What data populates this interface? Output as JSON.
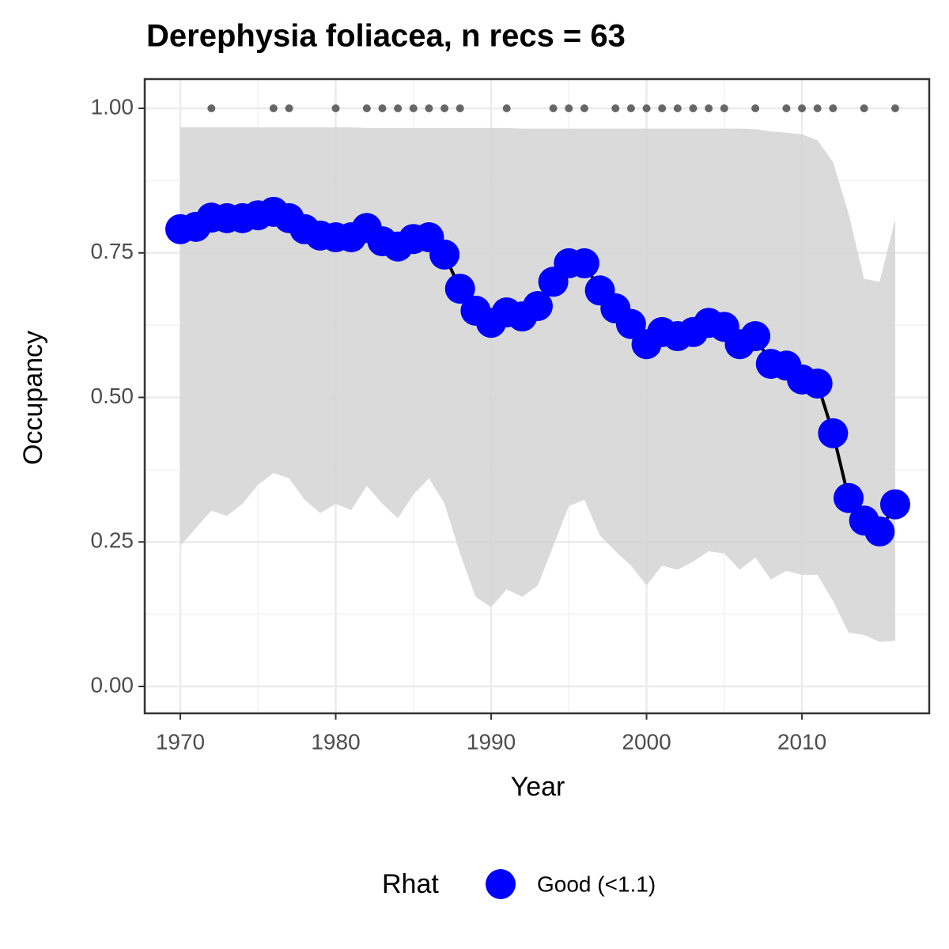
{
  "chart_data": {
    "type": "line",
    "title": "Derephysia foliacea, n recs = 63",
    "x_label": "Year",
    "y_label": "Occupancy",
    "xlim": [
      1967.71,
      2018.19
    ],
    "ylim": [
      -0.0465,
      1.0506
    ],
    "xticks": [
      1970,
      1980,
      1990,
      2000,
      2010
    ],
    "yticks": [
      {
        "value": 0,
        "label": "0.00"
      },
      {
        "value": 0.25,
        "label": "0.25"
      },
      {
        "value": 0.5,
        "label": "0.50"
      },
      {
        "value": 0.75,
        "label": "0.75"
      },
      {
        "value": 1,
        "label": "1.00"
      }
    ],
    "grid": true,
    "legend_title": "Rhat",
    "legend_position": "bottom",
    "x": [
      1970,
      1971,
      1972,
      1973,
      1974,
      1975,
      1976,
      1977,
      1978,
      1979,
      1980,
      1981,
      1982,
      1983,
      1984,
      1985,
      1986,
      1987,
      1988,
      1989,
      1990,
      1991,
      1992,
      1993,
      1994,
      1995,
      1996,
      1997,
      1998,
      1999,
      2000,
      2001,
      2002,
      2003,
      2004,
      2005,
      2006,
      2007,
      2008,
      2009,
      2010,
      2011,
      2012,
      2013,
      2014,
      2015,
      2016
    ],
    "series": [
      {
        "name": "Good (<1.1)",
        "color": "#0000ff",
        "line_color": "#000000",
        "values": [
          0.791,
          0.795,
          0.811,
          0.81,
          0.81,
          0.815,
          0.821,
          0.81,
          0.791,
          0.78,
          0.777,
          0.777,
          0.793,
          0.77,
          0.761,
          0.774,
          0.777,
          0.747,
          0.688,
          0.65,
          0.629,
          0.647,
          0.64,
          0.658,
          0.7,
          0.732,
          0.732,
          0.685,
          0.654,
          0.627,
          0.592,
          0.613,
          0.606,
          0.613,
          0.629,
          0.622,
          0.592,
          0.606,
          0.558,
          0.555,
          0.531,
          0.524,
          0.438,
          0.326,
          0.287,
          0.268,
          0.315
        ]
      }
    ],
    "band": {
      "color": "#d6d6d6",
      "upper": [
        0.967,
        0.967,
        0.967,
        0.967,
        0.967,
        0.967,
        0.967,
        0.967,
        0.967,
        0.967,
        0.967,
        0.967,
        0.966,
        0.966,
        0.966,
        0.966,
        0.966,
        0.966,
        0.966,
        0.966,
        0.966,
        0.966,
        0.965,
        0.965,
        0.965,
        0.965,
        0.965,
        0.965,
        0.965,
        0.965,
        0.965,
        0.965,
        0.965,
        0.965,
        0.965,
        0.965,
        0.965,
        0.964,
        0.96,
        0.958,
        0.955,
        0.945,
        0.907,
        0.818,
        0.705,
        0.7,
        0.808
      ],
      "lower": [
        0.243,
        0.274,
        0.304,
        0.295,
        0.316,
        0.349,
        0.369,
        0.36,
        0.323,
        0.3,
        0.316,
        0.305,
        0.347,
        0.316,
        0.291,
        0.332,
        0.36,
        0.316,
        0.23,
        0.155,
        0.137,
        0.168,
        0.155,
        0.175,
        0.243,
        0.312,
        0.323,
        0.261,
        0.234,
        0.209,
        0.175,
        0.209,
        0.202,
        0.216,
        0.234,
        0.23,
        0.202,
        0.223,
        0.185,
        0.2,
        0.193,
        0.193,
        0.148,
        0.093,
        0.089,
        0.077,
        0.079
      ]
    },
    "records": {
      "color": "#666666",
      "x": [
        1972,
        1976,
        1977,
        1980,
        1982,
        1983,
        1984,
        1985,
        1986,
        1987,
        1988,
        1991,
        1994,
        1995,
        1996,
        1998,
        1999,
        2000,
        2001,
        2002,
        2003,
        2004,
        2005,
        2007,
        2009,
        2010,
        2011,
        2012,
        2014,
        2016
      ],
      "values": [
        1,
        1,
        1,
        1,
        1,
        1,
        1,
        1,
        1,
        1,
        1,
        1,
        1,
        1,
        1,
        1,
        1,
        1,
        1,
        1,
        1,
        1,
        1,
        1,
        1,
        1,
        1,
        1,
        1,
        1
      ]
    }
  }
}
